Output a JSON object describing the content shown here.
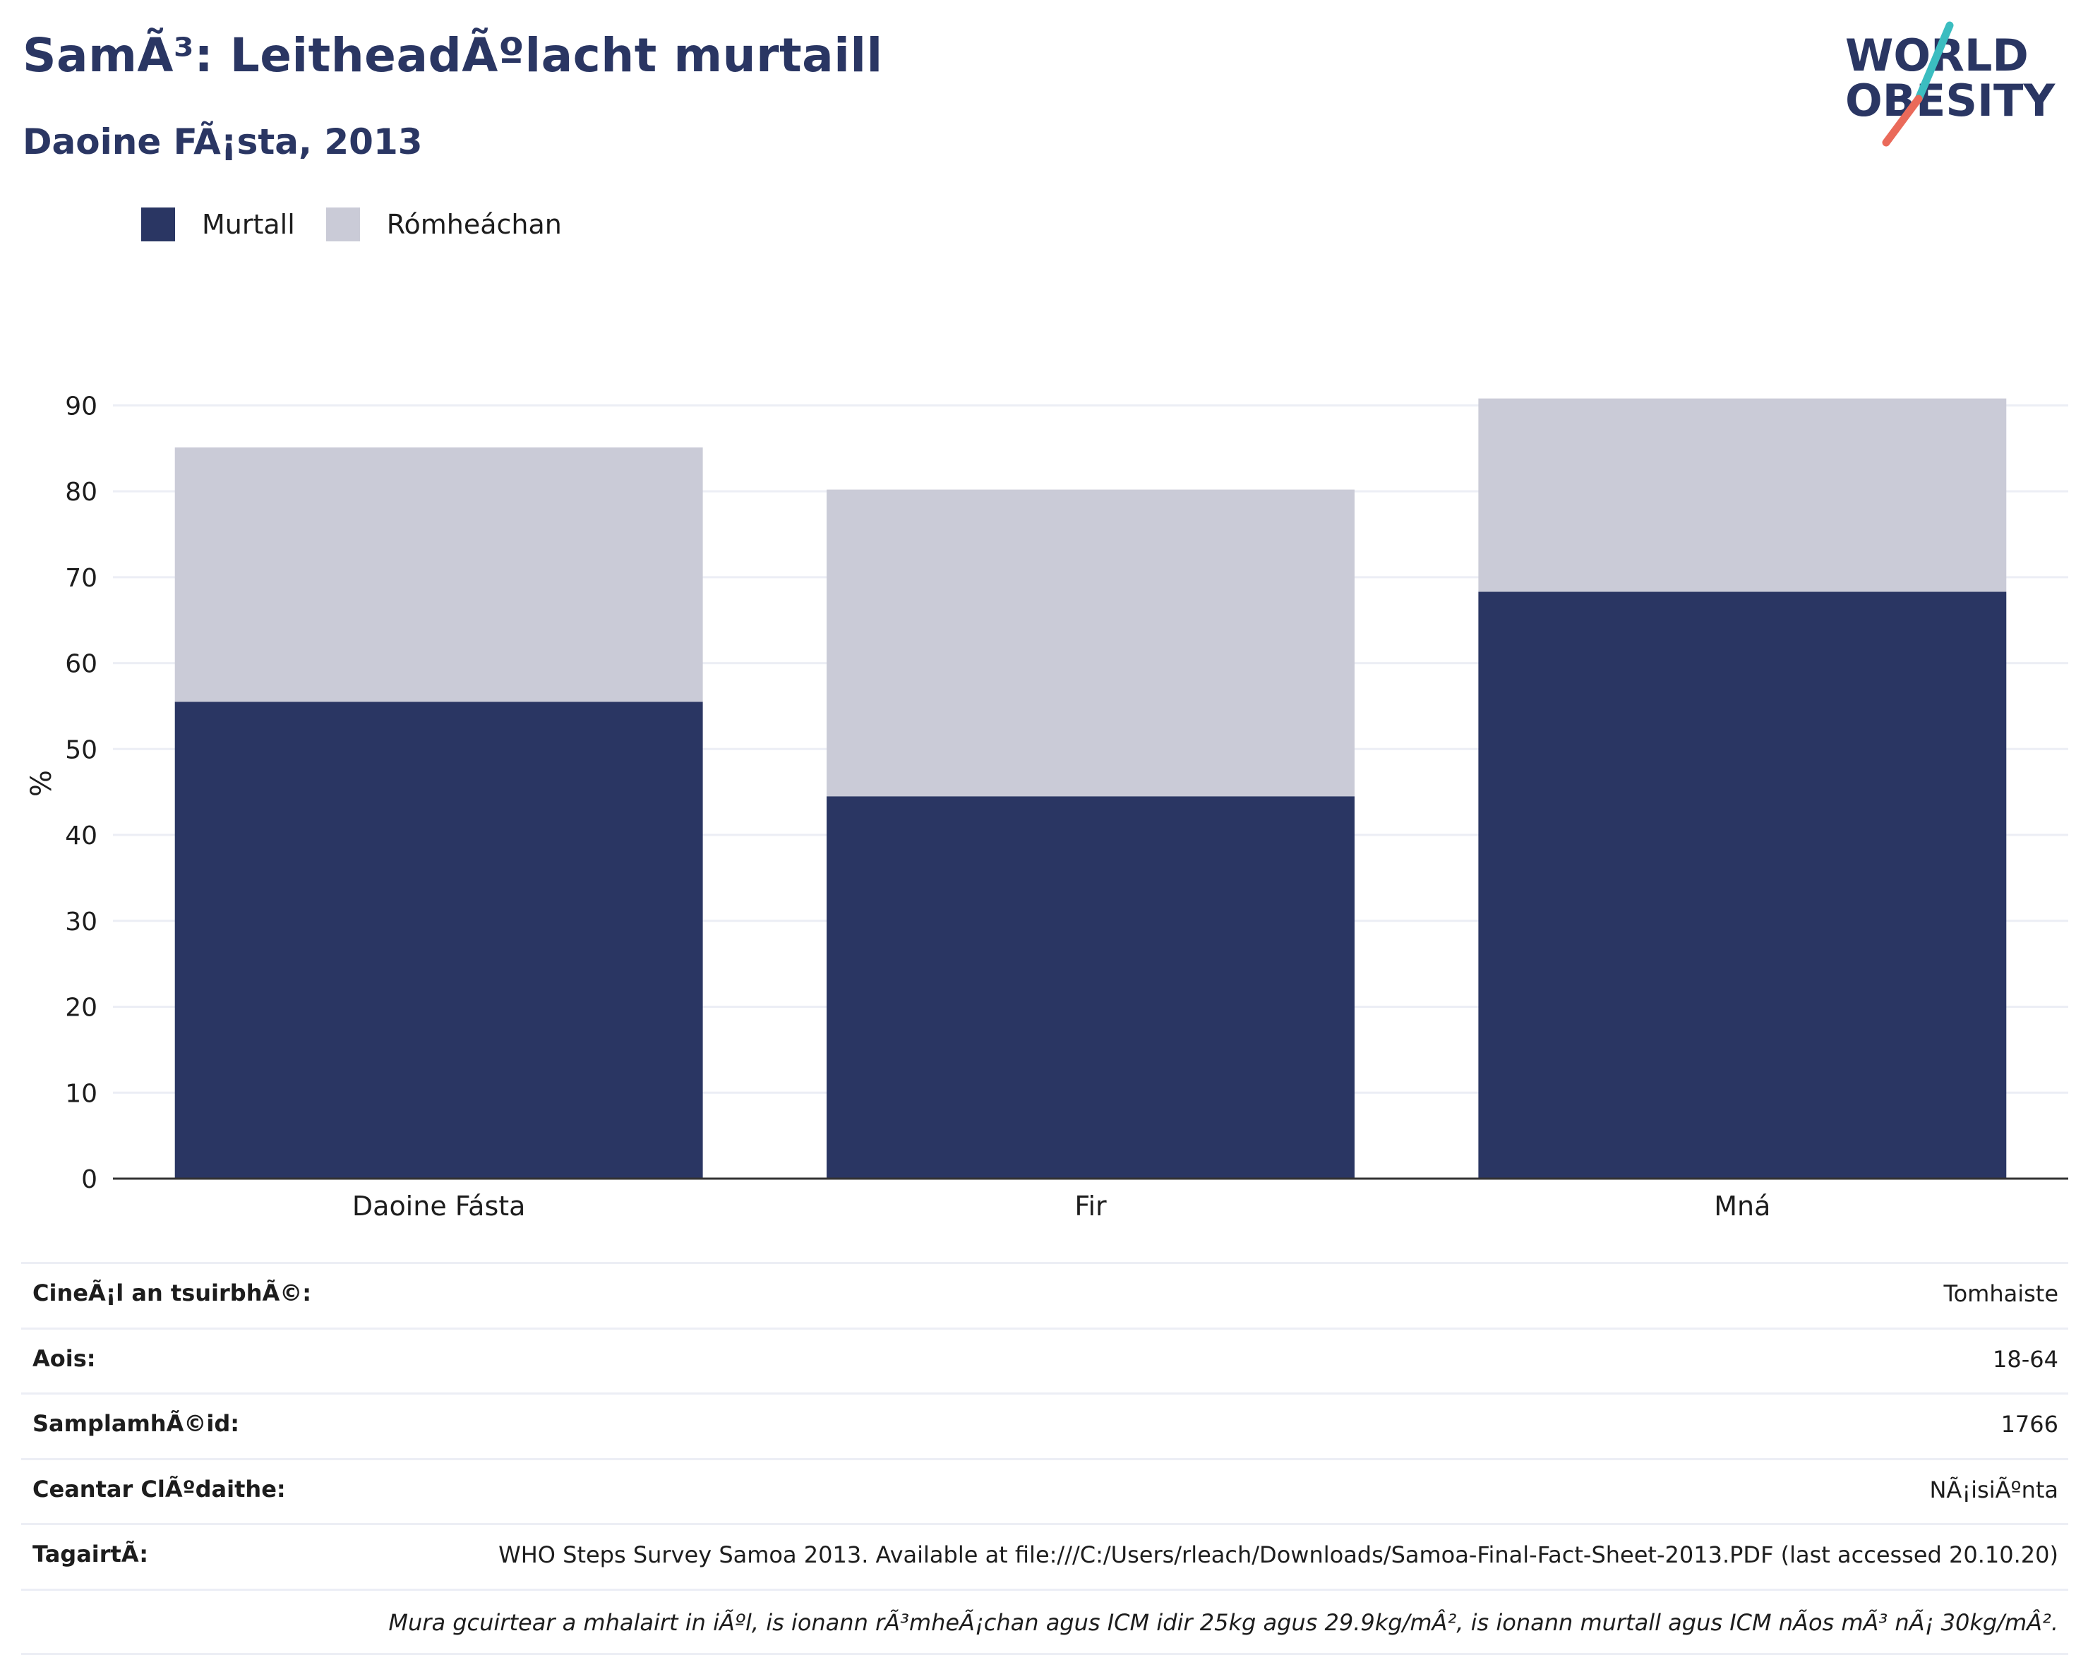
{
  "header": {
    "title": "SamÃ³: LeitheadÃºlacht murtaill",
    "subtitle": "Daoine FÃ¡sta, 2013"
  },
  "logo": {
    "line1": "WORLD",
    "line2": "OBESITY",
    "colors": {
      "text": "#2a3663",
      "slash_teal": "#3bbdc0",
      "slash_coral": "#ea6a5a"
    }
  },
  "colors": {
    "obese": "#2a3663",
    "overweight": "#cacbd7",
    "gridline": "#eceef5",
    "axis": "#333333"
  },
  "chart_data": {
    "type": "bar",
    "stacked": true,
    "categories": [
      "Daoine Fásta",
      "Fir",
      "Mná"
    ],
    "series": [
      {
        "name": "Murtall",
        "values": [
          55.5,
          44.5,
          68.3
        ]
      },
      {
        "name": "Rómheáchan",
        "values": [
          29.6,
          35.7,
          22.5
        ]
      }
    ],
    "ylabel": "%",
    "ylim": [
      0,
      92
    ],
    "yticks": [
      0,
      10,
      20,
      30,
      40,
      50,
      60,
      70,
      80,
      90
    ],
    "grid": true,
    "legend_position": "top-left"
  },
  "info": [
    {
      "label": "CineÃ¡l an tsuirbhÃ©:",
      "value": "Tomhaiste"
    },
    {
      "label": "Aois:",
      "value": "18-64"
    },
    {
      "label": "SamplamhÃ©id:",
      "value": "1766"
    },
    {
      "label": "Ceantar ClÃºdaithe:",
      "value": "NÃ¡isiÃºnta"
    },
    {
      "label": "TagairtÃ:",
      "value": "WHO Steps Survey Samoa 2013. Available at file:///C:/Users/rleach/Downloads/Samoa-Final-Fact-Sheet-2013.PDF (last accessed 20.10.20)"
    }
  ],
  "note": "Mura gcuirtear a mhalairt in iÃºl, is ionann rÃ³mheÃ¡chan agus ICM idir 25kg agus 29.9kg/mÂ², is ionann murtall agus ICM nÃos mÃ³ nÃ¡ 30kg/mÂ²."
}
